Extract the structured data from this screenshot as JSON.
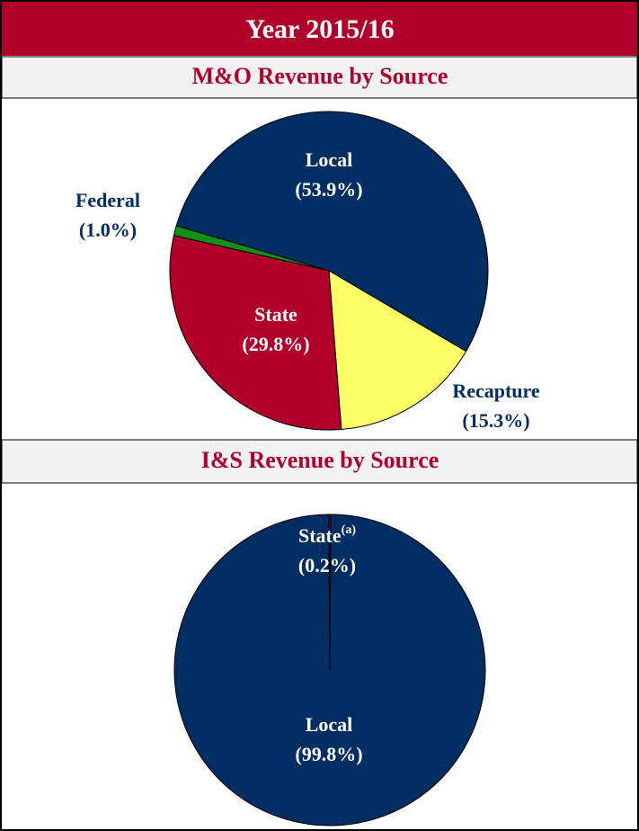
{
  "header": {
    "title": "Year 2015/16"
  },
  "chart_data": [
    {
      "type": "pie",
      "title": "M&O Revenue by Source",
      "categories": [
        "Local",
        "Recapture",
        "State",
        "Federal"
      ],
      "values": [
        53.9,
        15.3,
        29.8,
        1.0
      ],
      "value_labels": [
        "(53.9%)",
        "(15.3%)",
        "(29.8%)",
        "(1.0%)"
      ],
      "colors": [
        "#002d62",
        "#ffff66",
        "#b0002a",
        "#12901a"
      ]
    },
    {
      "type": "pie",
      "title": "I&S Revenue by Source",
      "categories": [
        "State",
        "Local"
      ],
      "values": [
        0.2,
        99.8
      ],
      "value_labels": [
        "(0.2%)",
        "(99.8%)"
      ],
      "superscripts": [
        "(a)",
        null
      ],
      "colors": [
        "#b0002a",
        "#002d62"
      ]
    }
  ]
}
